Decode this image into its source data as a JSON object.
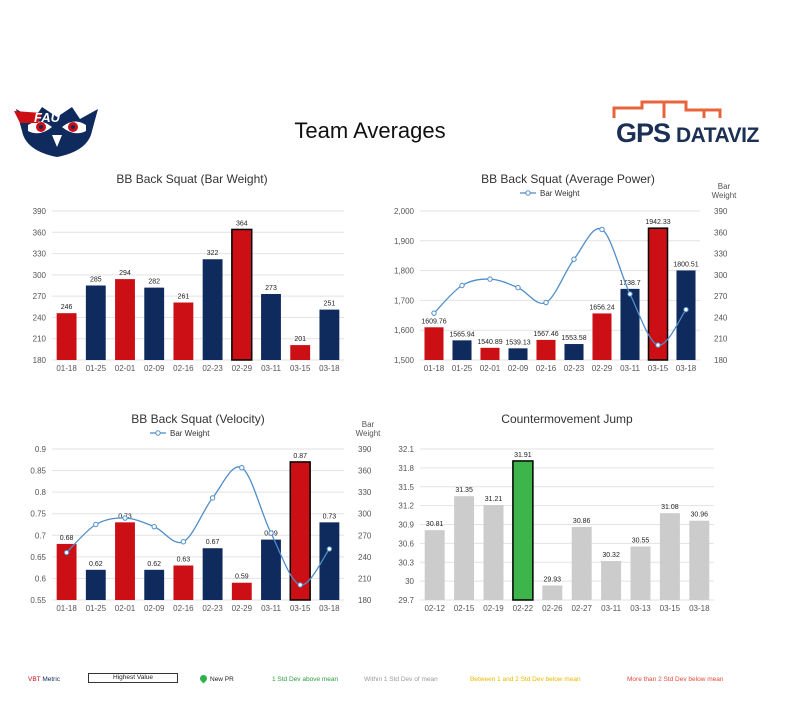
{
  "page": {
    "title": "Team Averages"
  },
  "logos": {
    "left_text": "FAU",
    "right_gps": "GPS",
    "right_dataviz": "DATAVIZ"
  },
  "colors": {
    "red": "#cc0e15",
    "navy": "#0f2a5c",
    "gray": "#cccccc",
    "green": "#3db54a",
    "line": "#4f8ec9",
    "grid": "#e2e2e2"
  },
  "footer_legend": {
    "vbt": "VBT",
    "metric": " Metric",
    "highest": "Highest Value",
    "new_pr": "New PR",
    "above": "1 Std Dev above mean",
    "within": "Within 1 Std Dev of mean",
    "between": "Between 1 and 2 Std Dev below mean",
    "more": "More than 2 Std Dev below mean"
  },
  "chart_data": [
    {
      "id": "bar-weight",
      "type": "bar",
      "title": "BB Back Squat (Bar Weight)",
      "categories": [
        "01-18",
        "01-25",
        "02-01",
        "02-09",
        "02-16",
        "02-23",
        "02-29",
        "03-11",
        "03-15",
        "03-18"
      ],
      "values": [
        246,
        285,
        294,
        282,
        261,
        322,
        364,
        273,
        201,
        251
      ],
      "labels": [
        "246",
        "285",
        "294",
        "282",
        "261",
        "322",
        "364",
        "273",
        "201",
        "251"
      ],
      "bar_colors": [
        "red",
        "navy",
        "red",
        "navy",
        "red",
        "navy",
        "red",
        "navy",
        "red",
        "navy"
      ],
      "highlight_index": 6,
      "ylim": [
        180,
        390
      ],
      "yticks": [
        180,
        210,
        240,
        270,
        300,
        330,
        360,
        390
      ],
      "ytick_labels": [
        "180",
        "210",
        "240",
        "270",
        "300",
        "330",
        "360",
        "390"
      ]
    },
    {
      "id": "avg-power",
      "type": "bar",
      "title": "BB Back Squat (Average Power)",
      "categories": [
        "01-18",
        "01-25",
        "02-01",
        "02-09",
        "02-16",
        "02-23",
        "02-29",
        "03-11",
        "03-15",
        "03-18"
      ],
      "values": [
        1609.76,
        1565.94,
        1540.89,
        1539.13,
        1567.46,
        1553.58,
        1656.24,
        1738.7,
        1942.33,
        1800.51
      ],
      "labels": [
        "1609.76",
        "1565.94",
        "1540.89",
        "1539.13",
        "1567.46",
        "1553.58",
        "1656.24",
        "1738.7",
        "1942.33",
        "1800.51"
      ],
      "bar_colors": [
        "red",
        "navy",
        "red",
        "navy",
        "red",
        "navy",
        "red",
        "navy",
        "red",
        "navy"
      ],
      "highlight_index": 8,
      "ylim": [
        1500,
        2000
      ],
      "yticks": [
        1500,
        1600,
        1700,
        1800,
        1900,
        2000
      ],
      "ytick_labels": [
        "1,500",
        "1,600",
        "1,700",
        "1,800",
        "1,900",
        "2,000"
      ],
      "line_series": {
        "name": "Bar Weight",
        "values": [
          246,
          285,
          294,
          282,
          261,
          322,
          364,
          273,
          201,
          251
        ],
        "ylim": [
          180,
          390
        ],
        "yticks": [
          180,
          210,
          240,
          270,
          300,
          330,
          360,
          390
        ],
        "ytick_labels": [
          "180",
          "210",
          "240",
          "270",
          "300",
          "330",
          "360",
          "390"
        ],
        "axis_label_1": "Bar",
        "axis_label_2": "Weight"
      }
    },
    {
      "id": "velocity",
      "type": "bar",
      "title": "BB Back Squat (Velocity)",
      "categories": [
        "01-18",
        "01-25",
        "02-01",
        "02-09",
        "02-16",
        "02-23",
        "02-29",
        "03-11",
        "03-15",
        "03-18"
      ],
      "values": [
        0.68,
        0.62,
        0.73,
        0.62,
        0.63,
        0.67,
        0.59,
        0.69,
        0.87,
        0.73
      ],
      "labels": [
        "0.68",
        "0.62",
        "0.73",
        "0.62",
        "0.63",
        "0.67",
        "0.59",
        "0.69",
        "0.87",
        "0.73"
      ],
      "bar_colors": [
        "red",
        "navy",
        "red",
        "navy",
        "red",
        "navy",
        "red",
        "navy",
        "red",
        "navy"
      ],
      "highlight_index": 8,
      "ylim": [
        0.55,
        0.9
      ],
      "yticks": [
        0.55,
        0.6,
        0.65,
        0.7,
        0.75,
        0.8,
        0.85,
        0.9
      ],
      "ytick_labels": [
        "0.55",
        "0.6",
        "0.65",
        "0.7",
        "0.75",
        "0.8",
        "0.85",
        "0.9"
      ],
      "line_series": {
        "name": "Bar Weight",
        "values": [
          246,
          285,
          294,
          282,
          261,
          322,
          364,
          273,
          201,
          251
        ],
        "ylim": [
          180,
          390
        ],
        "yticks": [
          180,
          210,
          240,
          270,
          300,
          330,
          360,
          390
        ],
        "ytick_labels": [
          "180",
          "210",
          "240",
          "270",
          "300",
          "330",
          "360",
          "390"
        ],
        "axis_label_1": "Bar",
        "axis_label_2": "Weight"
      }
    },
    {
      "id": "cmj",
      "type": "bar",
      "title": "Countermovement Jump",
      "categories": [
        "02-12",
        "02-15",
        "02-19",
        "02-22",
        "02-26",
        "02-27",
        "03-11",
        "03-13",
        "03-15",
        "03-18"
      ],
      "values": [
        30.81,
        31.35,
        31.21,
        31.91,
        29.93,
        30.86,
        30.32,
        30.55,
        31.08,
        30.96
      ],
      "labels": [
        "30.81",
        "31.35",
        "31.21",
        "31.91",
        "29.93",
        "30.86",
        "30.32",
        "30.55",
        "31.08",
        "30.96"
      ],
      "bar_colors": [
        "gray",
        "gray",
        "gray",
        "green",
        "gray",
        "gray",
        "gray",
        "gray",
        "gray",
        "gray"
      ],
      "highlight_index": 3,
      "ylim": [
        29.7,
        32.1
      ],
      "yticks": [
        29.7,
        30,
        30.3,
        30.6,
        30.9,
        31.2,
        31.5,
        31.8,
        32.1
      ],
      "ytick_labels": [
        "29.7",
        "30",
        "30.3",
        "30.6",
        "30.9",
        "31.2",
        "31.5",
        "31.8",
        "32.1"
      ]
    }
  ]
}
